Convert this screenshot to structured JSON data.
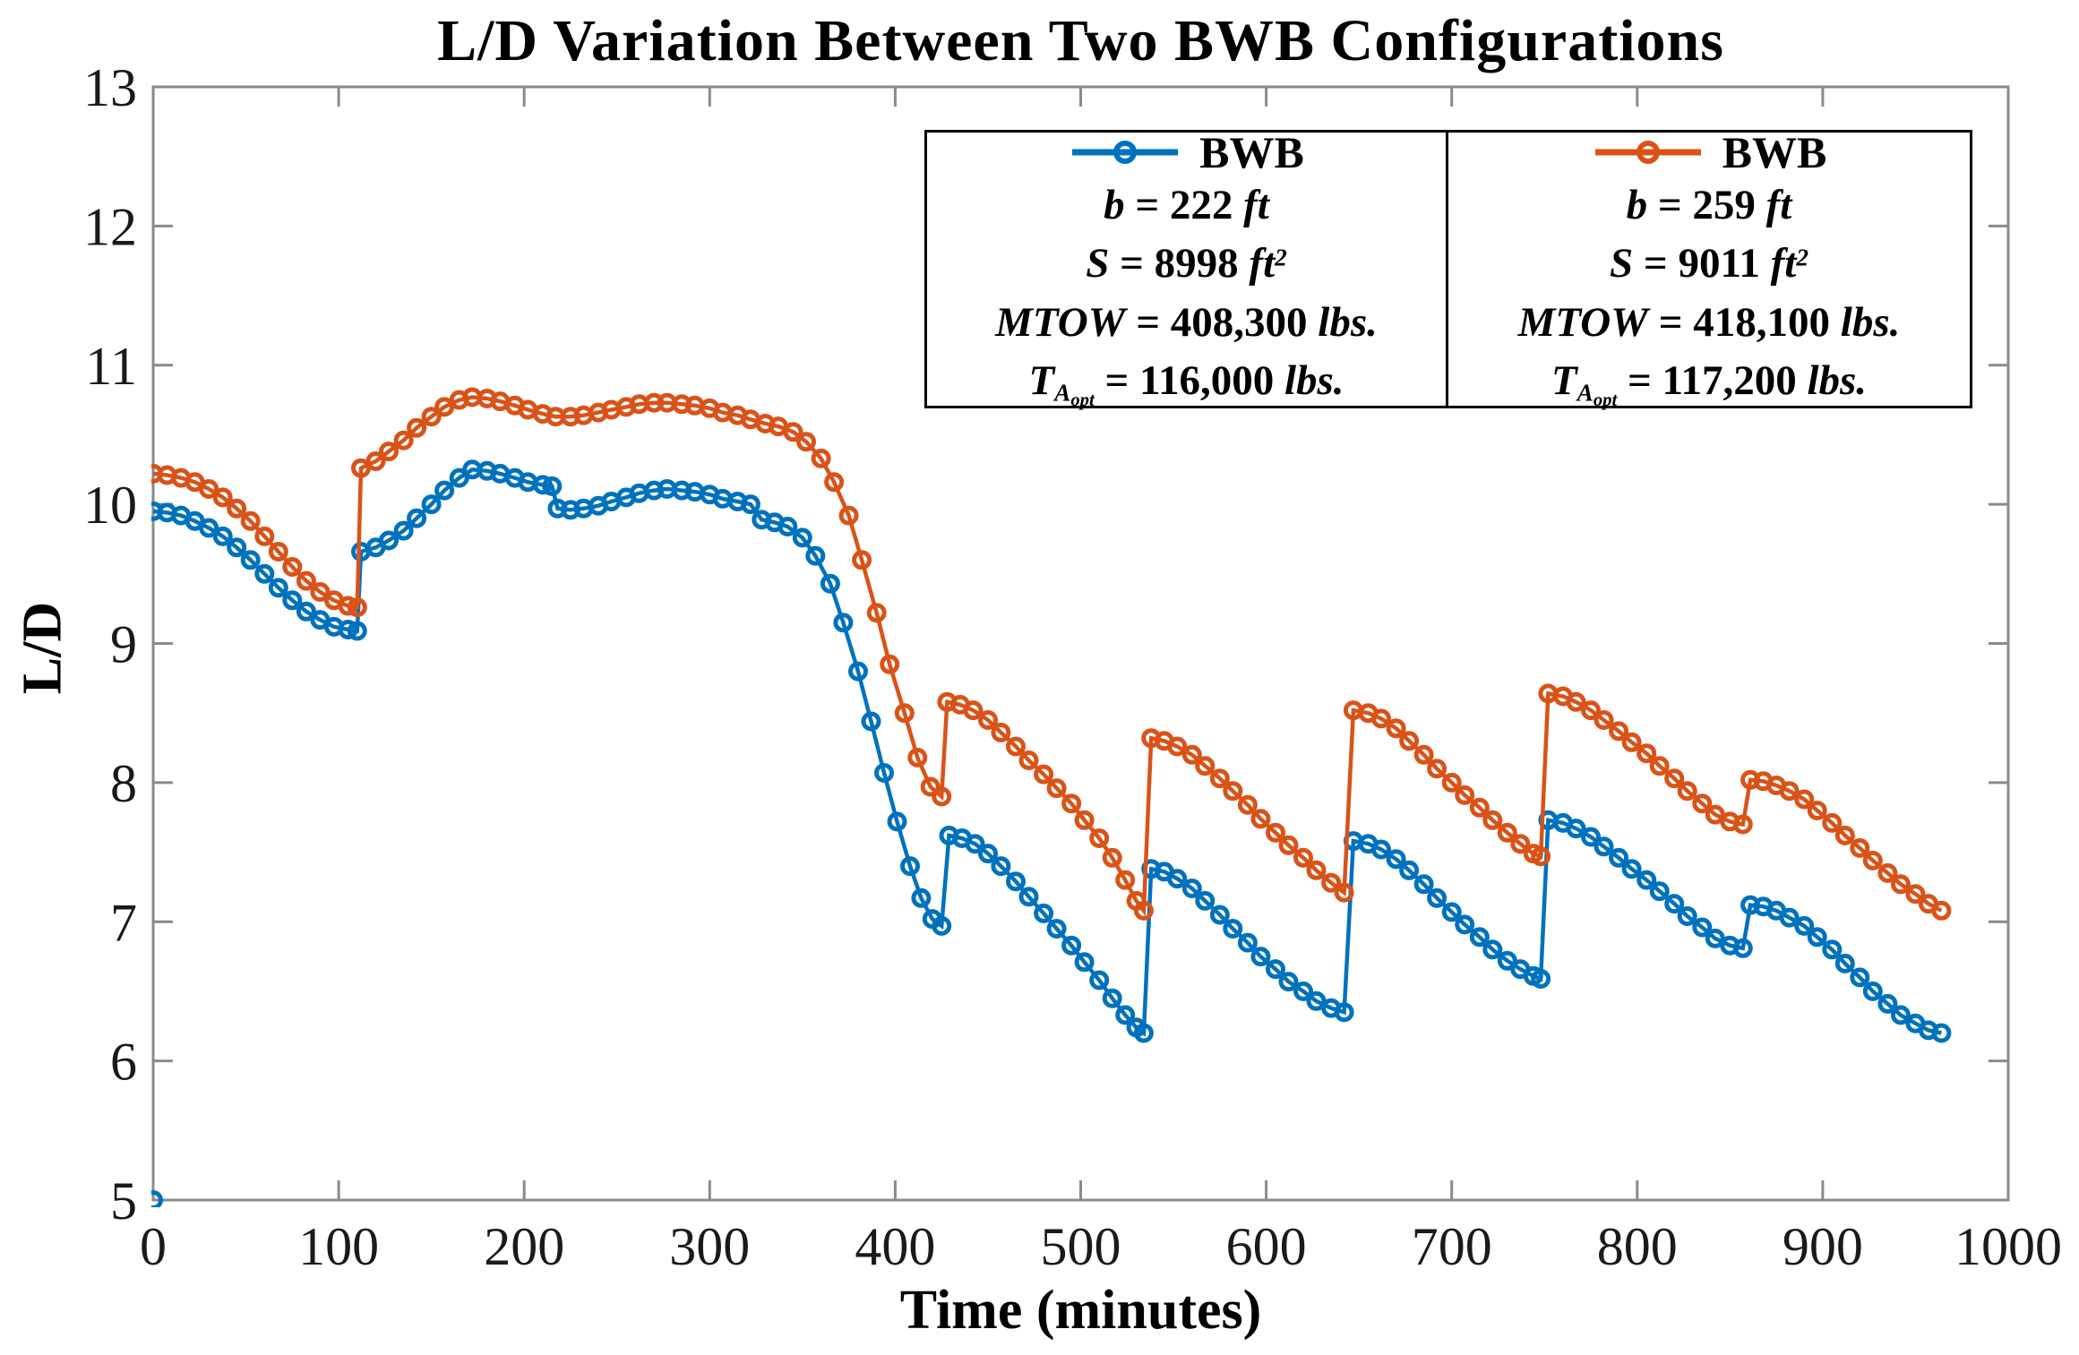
{
  "title": "L/D Variation Between Two BWB Configurations",
  "axes": {
    "xlabel": "Time (minutes)",
    "ylabel": "L/D",
    "x_ticks": [
      0,
      100,
      200,
      300,
      400,
      500,
      600,
      700,
      800,
      900,
      1000
    ],
    "y_ticks": [
      5,
      6,
      7,
      8,
      9,
      10,
      11,
      12,
      13
    ]
  },
  "colors": {
    "blue_series": "#0072BD",
    "orange_series": "#D95319",
    "axis_frame": "#8a8a8a",
    "legend_border": "#000000"
  },
  "legend": {
    "panels": [
      {
        "name": "BWB",
        "color": "#0072BD",
        "rows": [
          {
            "sym": "b",
            "sub": "",
            "subsub": "",
            "val": " = 222 ",
            "unit": "ft",
            "sup": ""
          },
          {
            "sym": "S",
            "sub": "",
            "subsub": "",
            "val": " = 8998 ",
            "unit": "ft",
            "sup": "2"
          },
          {
            "sym": "MTOW",
            "sub": "",
            "subsub": "",
            "val": " = 408,300 ",
            "unit": "lbs.",
            "sup": ""
          },
          {
            "sym": "T",
            "sub": "A",
            "subsub": "opt",
            "val": " = 116,000 ",
            "unit": "lbs.",
            "sup": ""
          }
        ]
      },
      {
        "name": "BWB",
        "color": "#D95319",
        "rows": [
          {
            "sym": "b",
            "sub": "",
            "subsub": "",
            "val": " = 259 ",
            "unit": "ft",
            "sup": ""
          },
          {
            "sym": "S",
            "sub": "",
            "subsub": "",
            "val": " = 9011 ",
            "unit": "ft",
            "sup": "2"
          },
          {
            "sym": "MTOW",
            "sub": "",
            "subsub": "",
            "val": " = 418,100 ",
            "unit": "lbs.",
            "sup": ""
          },
          {
            "sym": "T",
            "sub": "A",
            "subsub": "opt",
            "val": " = 117,200 ",
            "unit": "lbs.",
            "sup": ""
          }
        ]
      }
    ]
  },
  "chart_data": {
    "type": "line",
    "title": "L/D Variation Between Two BWB Configurations",
    "xlabel": "Time (minutes)",
    "ylabel": "L/D",
    "xlim": [
      0,
      1000
    ],
    "ylim": [
      5,
      13
    ],
    "grid": false,
    "legend_position": "upper-center-right, two bordered panels",
    "marker": "open-circle",
    "corner_marker": {
      "series": "BWB b=222",
      "x": 0,
      "y": 5.0
    },
    "series": [
      {
        "name": "BWB (legend panel 1)",
        "color": "#0072BD",
        "points": [
          [
            0,
            9.95
          ],
          [
            7.5,
            9.94
          ],
          [
            15,
            9.92
          ],
          [
            22.5,
            9.88
          ],
          [
            30,
            9.83
          ],
          [
            37.5,
            9.77
          ],
          [
            45,
            9.69
          ],
          [
            52.5,
            9.6
          ],
          [
            60,
            9.5
          ],
          [
            67.5,
            9.4
          ],
          [
            75,
            9.31
          ],
          [
            82.5,
            9.23
          ],
          [
            90,
            9.17
          ],
          [
            97.5,
            9.12
          ],
          [
            105,
            9.1
          ],
          [
            110,
            9.09
          ],
          [
            112,
            9.66
          ],
          [
            120,
            9.69
          ],
          [
            127,
            9.74
          ],
          [
            135,
            9.81
          ],
          [
            142,
            9.9
          ],
          [
            150,
            10.0
          ],
          [
            157,
            10.1
          ],
          [
            165,
            10.19
          ],
          [
            172,
            10.25
          ],
          [
            180,
            10.24
          ],
          [
            187,
            10.22
          ],
          [
            195,
            10.19
          ],
          [
            202,
            10.16
          ],
          [
            210,
            10.14
          ],
          [
            215,
            10.13
          ],
          [
            218,
            9.97
          ],
          [
            225,
            9.96
          ],
          [
            232,
            9.97
          ],
          [
            240,
            9.99
          ],
          [
            247,
            10.02
          ],
          [
            255,
            10.05
          ],
          [
            262,
            10.08
          ],
          [
            270,
            10.1
          ],
          [
            277,
            10.11
          ],
          [
            285,
            10.1
          ],
          [
            292,
            10.09
          ],
          [
            300,
            10.07
          ],
          [
            307,
            10.04
          ],
          [
            315,
            10.02
          ],
          [
            322,
            10.0
          ],
          [
            328,
            9.89
          ],
          [
            335,
            9.87
          ],
          [
            342,
            9.84
          ],
          [
            350,
            9.76
          ],
          [
            357,
            9.63
          ],
          [
            365,
            9.43
          ],
          [
            372,
            9.15
          ],
          [
            380,
            8.8
          ],
          [
            387,
            8.44
          ],
          [
            394,
            8.07
          ],
          [
            401,
            7.72
          ],
          [
            408,
            7.4
          ],
          [
            414,
            7.17
          ],
          [
            420,
            7.02
          ],
          [
            425,
            6.97
          ],
          [
            429,
            7.62
          ],
          [
            436,
            7.6
          ],
          [
            443,
            7.56
          ],
          [
            450,
            7.49
          ],
          [
            457,
            7.4
          ],
          [
            465,
            7.29
          ],
          [
            472,
            7.18
          ],
          [
            480,
            7.06
          ],
          [
            487,
            6.95
          ],
          [
            495,
            6.83
          ],
          [
            502,
            6.71
          ],
          [
            510,
            6.58
          ],
          [
            517,
            6.45
          ],
          [
            524,
            6.33
          ],
          [
            530,
            6.24
          ],
          [
            534,
            6.2
          ],
          [
            538,
            7.38
          ],
          [
            545,
            7.36
          ],
          [
            552,
            7.31
          ],
          [
            560,
            7.24
          ],
          [
            567,
            7.15
          ],
          [
            575,
            7.05
          ],
          [
            582,
            6.95
          ],
          [
            590,
            6.85
          ],
          [
            597,
            6.75
          ],
          [
            605,
            6.66
          ],
          [
            612,
            6.57
          ],
          [
            620,
            6.5
          ],
          [
            627,
            6.43
          ],
          [
            635,
            6.38
          ],
          [
            642,
            6.35
          ],
          [
            647,
            7.58
          ],
          [
            655,
            7.56
          ],
          [
            662,
            7.52
          ],
          [
            670,
            7.45
          ],
          [
            677,
            7.37
          ],
          [
            685,
            7.27
          ],
          [
            692,
            7.17
          ],
          [
            700,
            7.07
          ],
          [
            707,
            6.98
          ],
          [
            715,
            6.89
          ],
          [
            722,
            6.8
          ],
          [
            730,
            6.72
          ],
          [
            737,
            6.66
          ],
          [
            744,
            6.61
          ],
          [
            748,
            6.59
          ],
          [
            752,
            7.73
          ],
          [
            760,
            7.71
          ],
          [
            767,
            7.67
          ],
          [
            775,
            7.61
          ],
          [
            782,
            7.54
          ],
          [
            790,
            7.46
          ],
          [
            797,
            7.38
          ],
          [
            805,
            7.3
          ],
          [
            812,
            7.22
          ],
          [
            820,
            7.13
          ],
          [
            827,
            7.04
          ],
          [
            835,
            6.96
          ],
          [
            842,
            6.88
          ],
          [
            850,
            6.83
          ],
          [
            857,
            6.81
          ],
          [
            861,
            7.12
          ],
          [
            868,
            7.11
          ],
          [
            875,
            7.08
          ],
          [
            882,
            7.03
          ],
          [
            890,
            6.97
          ],
          [
            897,
            6.89
          ],
          [
            905,
            6.8
          ],
          [
            912,
            6.7
          ],
          [
            920,
            6.6
          ],
          [
            927,
            6.5
          ],
          [
            935,
            6.41
          ],
          [
            942,
            6.33
          ],
          [
            950,
            6.27
          ],
          [
            957,
            6.22
          ],
          [
            964,
            6.2
          ]
        ]
      },
      {
        "name": "BWB (legend panel 2)",
        "color": "#D95319",
        "points": [
          [
            0,
            10.22
          ],
          [
            7.5,
            10.21
          ],
          [
            15,
            10.19
          ],
          [
            22.5,
            10.16
          ],
          [
            30,
            10.11
          ],
          [
            37.5,
            10.05
          ],
          [
            45,
            9.97
          ],
          [
            52.5,
            9.88
          ],
          [
            60,
            9.77
          ],
          [
            67.5,
            9.66
          ],
          [
            75,
            9.55
          ],
          [
            82.5,
            9.45
          ],
          [
            90,
            9.37
          ],
          [
            97.5,
            9.31
          ],
          [
            105,
            9.27
          ],
          [
            110,
            9.26
          ],
          [
            112,
            10.26
          ],
          [
            120,
            10.31
          ],
          [
            127,
            10.38
          ],
          [
            135,
            10.46
          ],
          [
            142,
            10.55
          ],
          [
            150,
            10.63
          ],
          [
            157,
            10.7
          ],
          [
            165,
            10.75
          ],
          [
            172,
            10.77
          ],
          [
            180,
            10.76
          ],
          [
            187,
            10.74
          ],
          [
            195,
            10.71
          ],
          [
            202,
            10.68
          ],
          [
            210,
            10.65
          ],
          [
            217,
            10.63
          ],
          [
            225,
            10.63
          ],
          [
            232,
            10.64
          ],
          [
            240,
            10.66
          ],
          [
            247,
            10.68
          ],
          [
            255,
            10.7
          ],
          [
            262,
            10.72
          ],
          [
            270,
            10.73
          ],
          [
            277,
            10.73
          ],
          [
            285,
            10.72
          ],
          [
            292,
            10.71
          ],
          [
            300,
            10.69
          ],
          [
            307,
            10.66
          ],
          [
            315,
            10.64
          ],
          [
            322,
            10.61
          ],
          [
            330,
            10.58
          ],
          [
            337,
            10.56
          ],
          [
            345,
            10.52
          ],
          [
            352,
            10.45
          ],
          [
            360,
            10.33
          ],
          [
            367,
            10.16
          ],
          [
            375,
            9.92
          ],
          [
            382,
            9.6
          ],
          [
            390,
            9.22
          ],
          [
            397,
            8.85
          ],
          [
            405,
            8.5
          ],
          [
            412,
            8.18
          ],
          [
            419,
            7.97
          ],
          [
            425,
            7.9
          ],
          [
            428,
            8.58
          ],
          [
            435,
            8.56
          ],
          [
            442,
            8.52
          ],
          [
            450,
            8.45
          ],
          [
            457,
            8.36
          ],
          [
            465,
            8.26
          ],
          [
            472,
            8.16
          ],
          [
            480,
            8.06
          ],
          [
            487,
            7.96
          ],
          [
            495,
            7.85
          ],
          [
            502,
            7.73
          ],
          [
            510,
            7.6
          ],
          [
            517,
            7.46
          ],
          [
            524,
            7.3
          ],
          [
            530,
            7.15
          ],
          [
            534,
            7.08
          ],
          [
            538,
            8.32
          ],
          [
            545,
            8.3
          ],
          [
            552,
            8.26
          ],
          [
            560,
            8.2
          ],
          [
            567,
            8.12
          ],
          [
            575,
            8.03
          ],
          [
            582,
            7.94
          ],
          [
            590,
            7.84
          ],
          [
            597,
            7.74
          ],
          [
            605,
            7.64
          ],
          [
            612,
            7.55
          ],
          [
            620,
            7.46
          ],
          [
            627,
            7.37
          ],
          [
            635,
            7.28
          ],
          [
            642,
            7.21
          ],
          [
            647,
            8.52
          ],
          [
            655,
            8.5
          ],
          [
            662,
            8.46
          ],
          [
            670,
            8.39
          ],
          [
            677,
            8.3
          ],
          [
            685,
            8.2
          ],
          [
            692,
            8.1
          ],
          [
            700,
            8.0
          ],
          [
            707,
            7.91
          ],
          [
            715,
            7.82
          ],
          [
            722,
            7.73
          ],
          [
            730,
            7.64
          ],
          [
            737,
            7.56
          ],
          [
            744,
            7.49
          ],
          [
            748,
            7.47
          ],
          [
            752,
            8.64
          ],
          [
            760,
            8.62
          ],
          [
            767,
            8.58
          ],
          [
            775,
            8.52
          ],
          [
            782,
            8.45
          ],
          [
            790,
            8.37
          ],
          [
            797,
            8.29
          ],
          [
            805,
            8.21
          ],
          [
            812,
            8.12
          ],
          [
            820,
            8.03
          ],
          [
            827,
            7.94
          ],
          [
            835,
            7.85
          ],
          [
            842,
            7.77
          ],
          [
            850,
            7.72
          ],
          [
            857,
            7.7
          ],
          [
            861,
            8.02
          ],
          [
            868,
            8.01
          ],
          [
            875,
            7.98
          ],
          [
            882,
            7.94
          ],
          [
            890,
            7.88
          ],
          [
            897,
            7.8
          ],
          [
            905,
            7.71
          ],
          [
            912,
            7.62
          ],
          [
            920,
            7.53
          ],
          [
            927,
            7.44
          ],
          [
            935,
            7.35
          ],
          [
            942,
            7.27
          ],
          [
            950,
            7.2
          ],
          [
            957,
            7.13
          ],
          [
            964,
            7.08
          ]
        ]
      }
    ]
  }
}
